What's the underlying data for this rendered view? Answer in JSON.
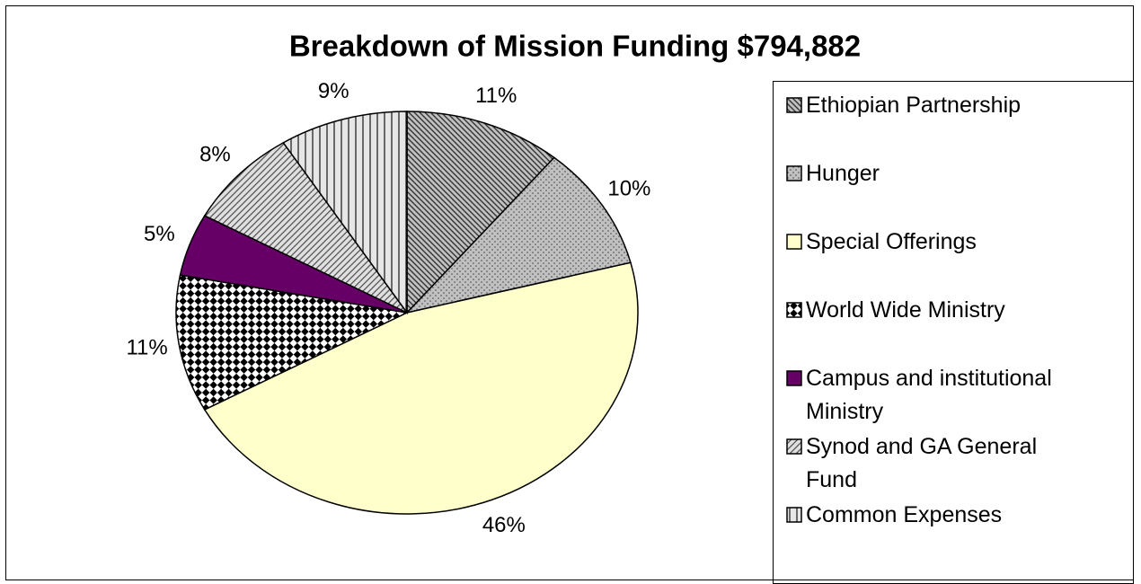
{
  "chart_data": {
    "type": "pie",
    "title": "Breakdown of Mission Funding  $794,882",
    "categories": [
      "Ethiopian Partnership",
      "Hunger",
      "Special Offerings",
      "World Wide Ministry",
      "Campus and institutional Ministry",
      "Synod and GA General Fund",
      "Common Expenses"
    ],
    "values": [
      11,
      10,
      46,
      11,
      5,
      8,
      9
    ],
    "value_labels": [
      "11%",
      "10%",
      "46%",
      "11%",
      "5%",
      "8%",
      "9%"
    ],
    "colors": [
      "#c0c0c0",
      "#c0c0c0",
      "#ffffcc",
      "#ffffff",
      "#660066",
      "#e0e0e0",
      "#e6e6e6"
    ],
    "legend": "right"
  }
}
